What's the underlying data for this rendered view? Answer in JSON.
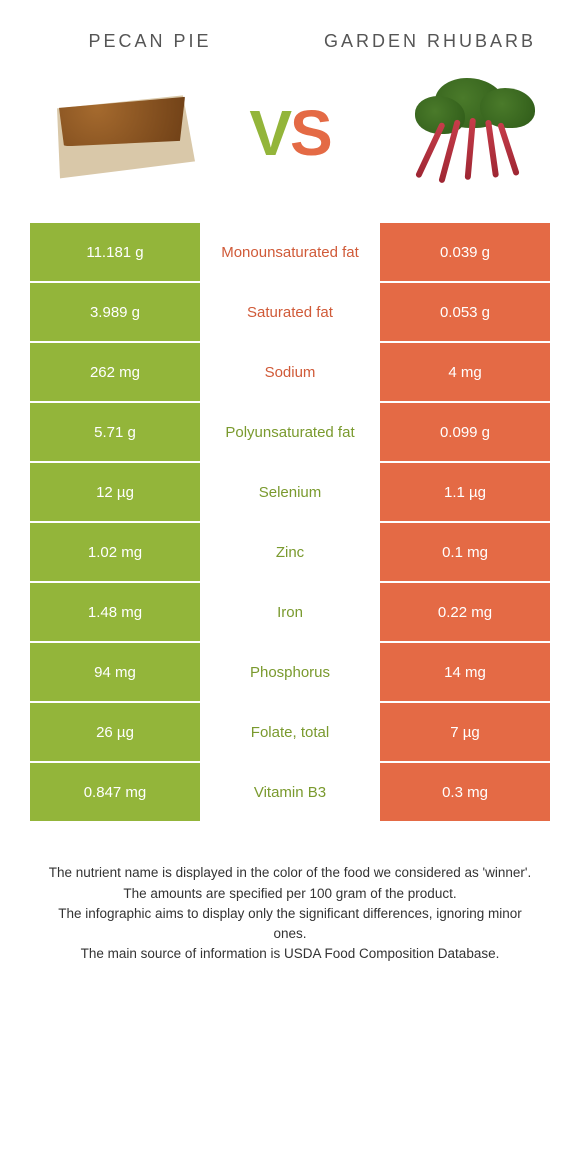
{
  "colors": {
    "green": "#93b53a",
    "orange": "#e46a45",
    "green_text": "#7a9a2e",
    "orange_text": "#d05a38"
  },
  "header": {
    "left": "PECAN PIE",
    "right": "GARDEN RHUBARB",
    "vs": "VS"
  },
  "rows": [
    {
      "left": "11.181 g",
      "label": "Monounsaturated fat",
      "right": "0.039 g",
      "label_color": "orange"
    },
    {
      "left": "3.989 g",
      "label": "Saturated fat",
      "right": "0.053 g",
      "label_color": "orange"
    },
    {
      "left": "262 mg",
      "label": "Sodium",
      "right": "4 mg",
      "label_color": "orange"
    },
    {
      "left": "5.71 g",
      "label": "Polyunsaturated fat",
      "right": "0.099 g",
      "label_color": "green"
    },
    {
      "left": "12 µg",
      "label": "Selenium",
      "right": "1.1 µg",
      "label_color": "green"
    },
    {
      "left": "1.02 mg",
      "label": "Zinc",
      "right": "0.1 mg",
      "label_color": "green"
    },
    {
      "left": "1.48 mg",
      "label": "Iron",
      "right": "0.22 mg",
      "label_color": "green"
    },
    {
      "left": "94 mg",
      "label": "Phosphorus",
      "right": "14 mg",
      "label_color": "green"
    },
    {
      "left": "26 µg",
      "label": "Folate, total",
      "right": "7 µg",
      "label_color": "green"
    },
    {
      "left": "0.847 mg",
      "label": "Vitamin B3",
      "right": "0.3 mg",
      "label_color": "green"
    }
  ],
  "footer": {
    "line1": "The nutrient name is displayed in the color of the food we considered as 'winner'.",
    "line2": "The amounts are specified per 100 gram of the product.",
    "line3": "The infographic aims to display only the significant differences, ignoring minor ones.",
    "line4": "The main source of information is USDA Food Composition Database."
  }
}
